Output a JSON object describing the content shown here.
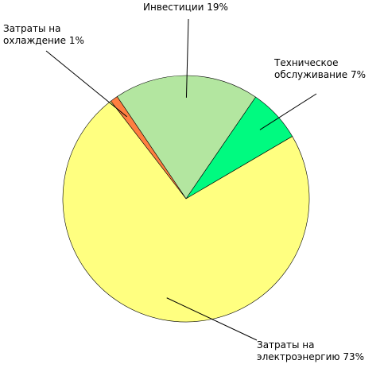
{
  "chart_data": {
    "type": "pie",
    "categories": [
      "Инвестиции",
      "Техническое обслуживание",
      "Затраты на электроэнергию",
      "Затраты на охлаждение"
    ],
    "values": [
      19,
      7,
      73,
      1
    ],
    "value_labels": [
      "19%",
      "7%",
      "73%",
      "1%"
    ],
    "colors": [
      "#b3e6a0",
      "#00fa80",
      "#ffff80",
      "#ff7f40"
    ]
  }
}
